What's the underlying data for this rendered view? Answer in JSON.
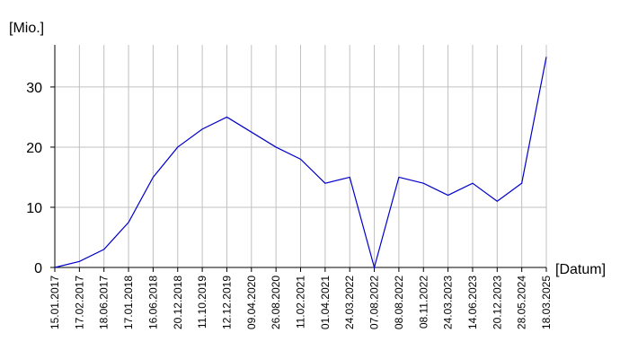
{
  "chart_data": {
    "type": "line",
    "y_label": "[Mio.]",
    "x_label": "[Datum]",
    "categories": [
      "15.01.2017",
      "17.02.2017",
      "18.06.2017",
      "17.01.2018",
      "16.06.2018",
      "20.12.2018",
      "11.10.2019",
      "12.12.2019",
      "09.04.2020",
      "26.08.2020",
      "11.02.2021",
      "01.04.2021",
      "24.03.2022",
      "07.08.2022",
      "08.08.2022",
      "08.11.2022",
      "24.03.2023",
      "14.06.2023",
      "20.12.2023",
      "28.05.2024",
      "18.03.2025"
    ],
    "values": [
      0,
      1,
      3,
      7.5,
      15,
      20,
      23,
      25,
      22.5,
      20,
      18,
      14,
      15,
      0,
      15,
      14,
      12,
      14,
      11,
      14,
      35
    ],
    "color": "#0000cc",
    "ylim": [
      0,
      37
    ],
    "yticks": [
      0,
      10,
      20,
      30
    ],
    "grid": true
  }
}
